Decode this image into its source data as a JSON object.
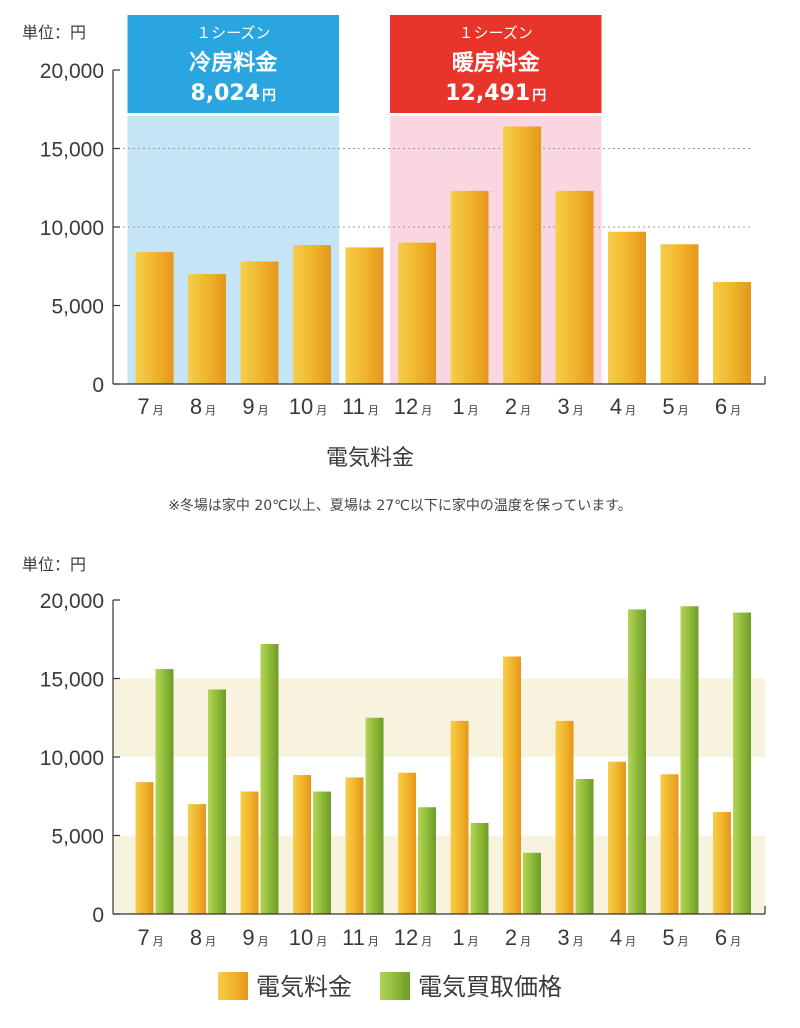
{
  "chart_data": [
    {
      "type": "bar",
      "unit_label": "単位：円",
      "ylim": [
        0,
        20000
      ],
      "yticks": [
        "0",
        "5,000",
        "10,000",
        "15,000",
        "20,000"
      ],
      "gridlines": [
        10000,
        15000
      ],
      "categories": [
        {
          "num": "7",
          "suffix": "月"
        },
        {
          "num": "8",
          "suffix": "月"
        },
        {
          "num": "9",
          "suffix": "月"
        },
        {
          "num": "10",
          "suffix": "月"
        },
        {
          "num": "11",
          "suffix": "月"
        },
        {
          "num": "12",
          "suffix": "月"
        },
        {
          "num": "1",
          "suffix": "月"
        },
        {
          "num": "2",
          "suffix": "月"
        },
        {
          "num": "3",
          "suffix": "月"
        },
        {
          "num": "4",
          "suffix": "月"
        },
        {
          "num": "5",
          "suffix": "月"
        },
        {
          "num": "6",
          "suffix": "月"
        }
      ],
      "values": [
        8400,
        7000,
        7800,
        8850,
        8700,
        9000,
        12300,
        16400,
        12300,
        9700,
        8900,
        6500
      ],
      "xlabel": "電気料金",
      "note": "※冬場は家中 20℃以上、夏場は 27℃以下に家中の温度を保っています。",
      "seasons": [
        {
          "from_index": 0,
          "to_index": 3,
          "line1": "１シーズン",
          "line2": "冷房料金",
          "amount": "8,024",
          "yen": "円",
          "header_color": "#2aa5e0",
          "band_color": "#c5e4f5"
        },
        {
          "from_index": 5,
          "to_index": 8,
          "line1": "１シーズン",
          "line2": "暖房料金",
          "amount": "12,491",
          "yen": "円",
          "header_color": "#e8342a",
          "band_color": "#fad6e3"
        }
      ]
    },
    {
      "type": "bar",
      "unit_label": "単位：円",
      "ylim": [
        0,
        20000
      ],
      "yticks": [
        "0",
        "5,000",
        "10,000",
        "15,000",
        "20,000"
      ],
      "bands": [
        [
          0,
          5000
        ],
        [
          10000,
          15000
        ]
      ],
      "band_color": "#f7f3de",
      "categories": [
        {
          "num": "7",
          "suffix": "月"
        },
        {
          "num": "8",
          "suffix": "月"
        },
        {
          "num": "9",
          "suffix": "月"
        },
        {
          "num": "10",
          "suffix": "月"
        },
        {
          "num": "11",
          "suffix": "月"
        },
        {
          "num": "12",
          "suffix": "月"
        },
        {
          "num": "1",
          "suffix": "月"
        },
        {
          "num": "2",
          "suffix": "月"
        },
        {
          "num": "3",
          "suffix": "月"
        },
        {
          "num": "4",
          "suffix": "月"
        },
        {
          "num": "5",
          "suffix": "月"
        },
        {
          "num": "6",
          "suffix": "月"
        }
      ],
      "series": [
        {
          "name": "電気料金",
          "color": "#f0b52a",
          "values": [
            8400,
            7000,
            7800,
            8850,
            8700,
            9000,
            12300,
            16400,
            12300,
            9700,
            8900,
            6500
          ]
        },
        {
          "name": "電気買取価格",
          "color": "#8ab83a",
          "values": [
            15600,
            14300,
            17200,
            7800,
            12500,
            6800,
            5800,
            3900,
            8600,
            19400,
            19600,
            19200
          ]
        }
      ]
    }
  ]
}
